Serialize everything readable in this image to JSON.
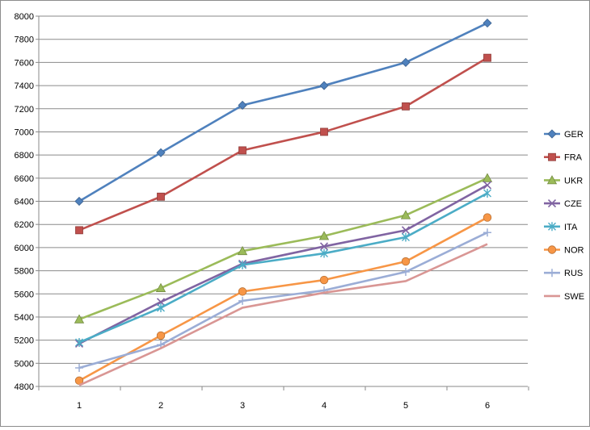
{
  "chart_data": {
    "type": "line",
    "title": "",
    "xlabel": "",
    "ylabel": "",
    "x": [
      1,
      2,
      3,
      4,
      5,
      6
    ],
    "ylim": [
      4800,
      8000
    ],
    "yticks": [
      4800,
      5000,
      5200,
      5400,
      5600,
      5800,
      6000,
      6200,
      6400,
      6600,
      6800,
      7000,
      7200,
      7400,
      7600,
      7800,
      8000
    ],
    "grid": true,
    "legend": "right",
    "series": [
      {
        "name": "GER",
        "values": [
          6400,
          6820,
          7230,
          7400,
          7600,
          7940
        ],
        "color": "#4F81BD",
        "marker": "diamond"
      },
      {
        "name": "FRA",
        "values": [
          6150,
          6440,
          6840,
          7000,
          7220,
          7640
        ],
        "color": "#C0504D",
        "marker": "square"
      },
      {
        "name": "UKR",
        "values": [
          5380,
          5650,
          5970,
          6100,
          6280,
          6600
        ],
        "color": "#9BBB59",
        "marker": "triangle"
      },
      {
        "name": "CZE",
        "values": [
          5170,
          5530,
          5860,
          6010,
          6150,
          6540
        ],
        "color": "#8064A2",
        "marker": "x"
      },
      {
        "name": "ITA",
        "values": [
          5180,
          5480,
          5850,
          5950,
          6090,
          6470
        ],
        "color": "#4BACC6",
        "marker": "asterisk"
      },
      {
        "name": "NOR",
        "values": [
          4850,
          5240,
          5620,
          5720,
          5880,
          6260
        ],
        "color": "#F79646",
        "marker": "circle"
      },
      {
        "name": "RUS",
        "values": [
          4960,
          5160,
          5540,
          5630,
          5790,
          6130
        ],
        "color": "#9BADD6",
        "marker": "plus"
      },
      {
        "name": "SWE",
        "values": [
          4810,
          5130,
          5480,
          5610,
          5710,
          6030
        ],
        "color": "#D99694",
        "marker": "none"
      }
    ]
  }
}
